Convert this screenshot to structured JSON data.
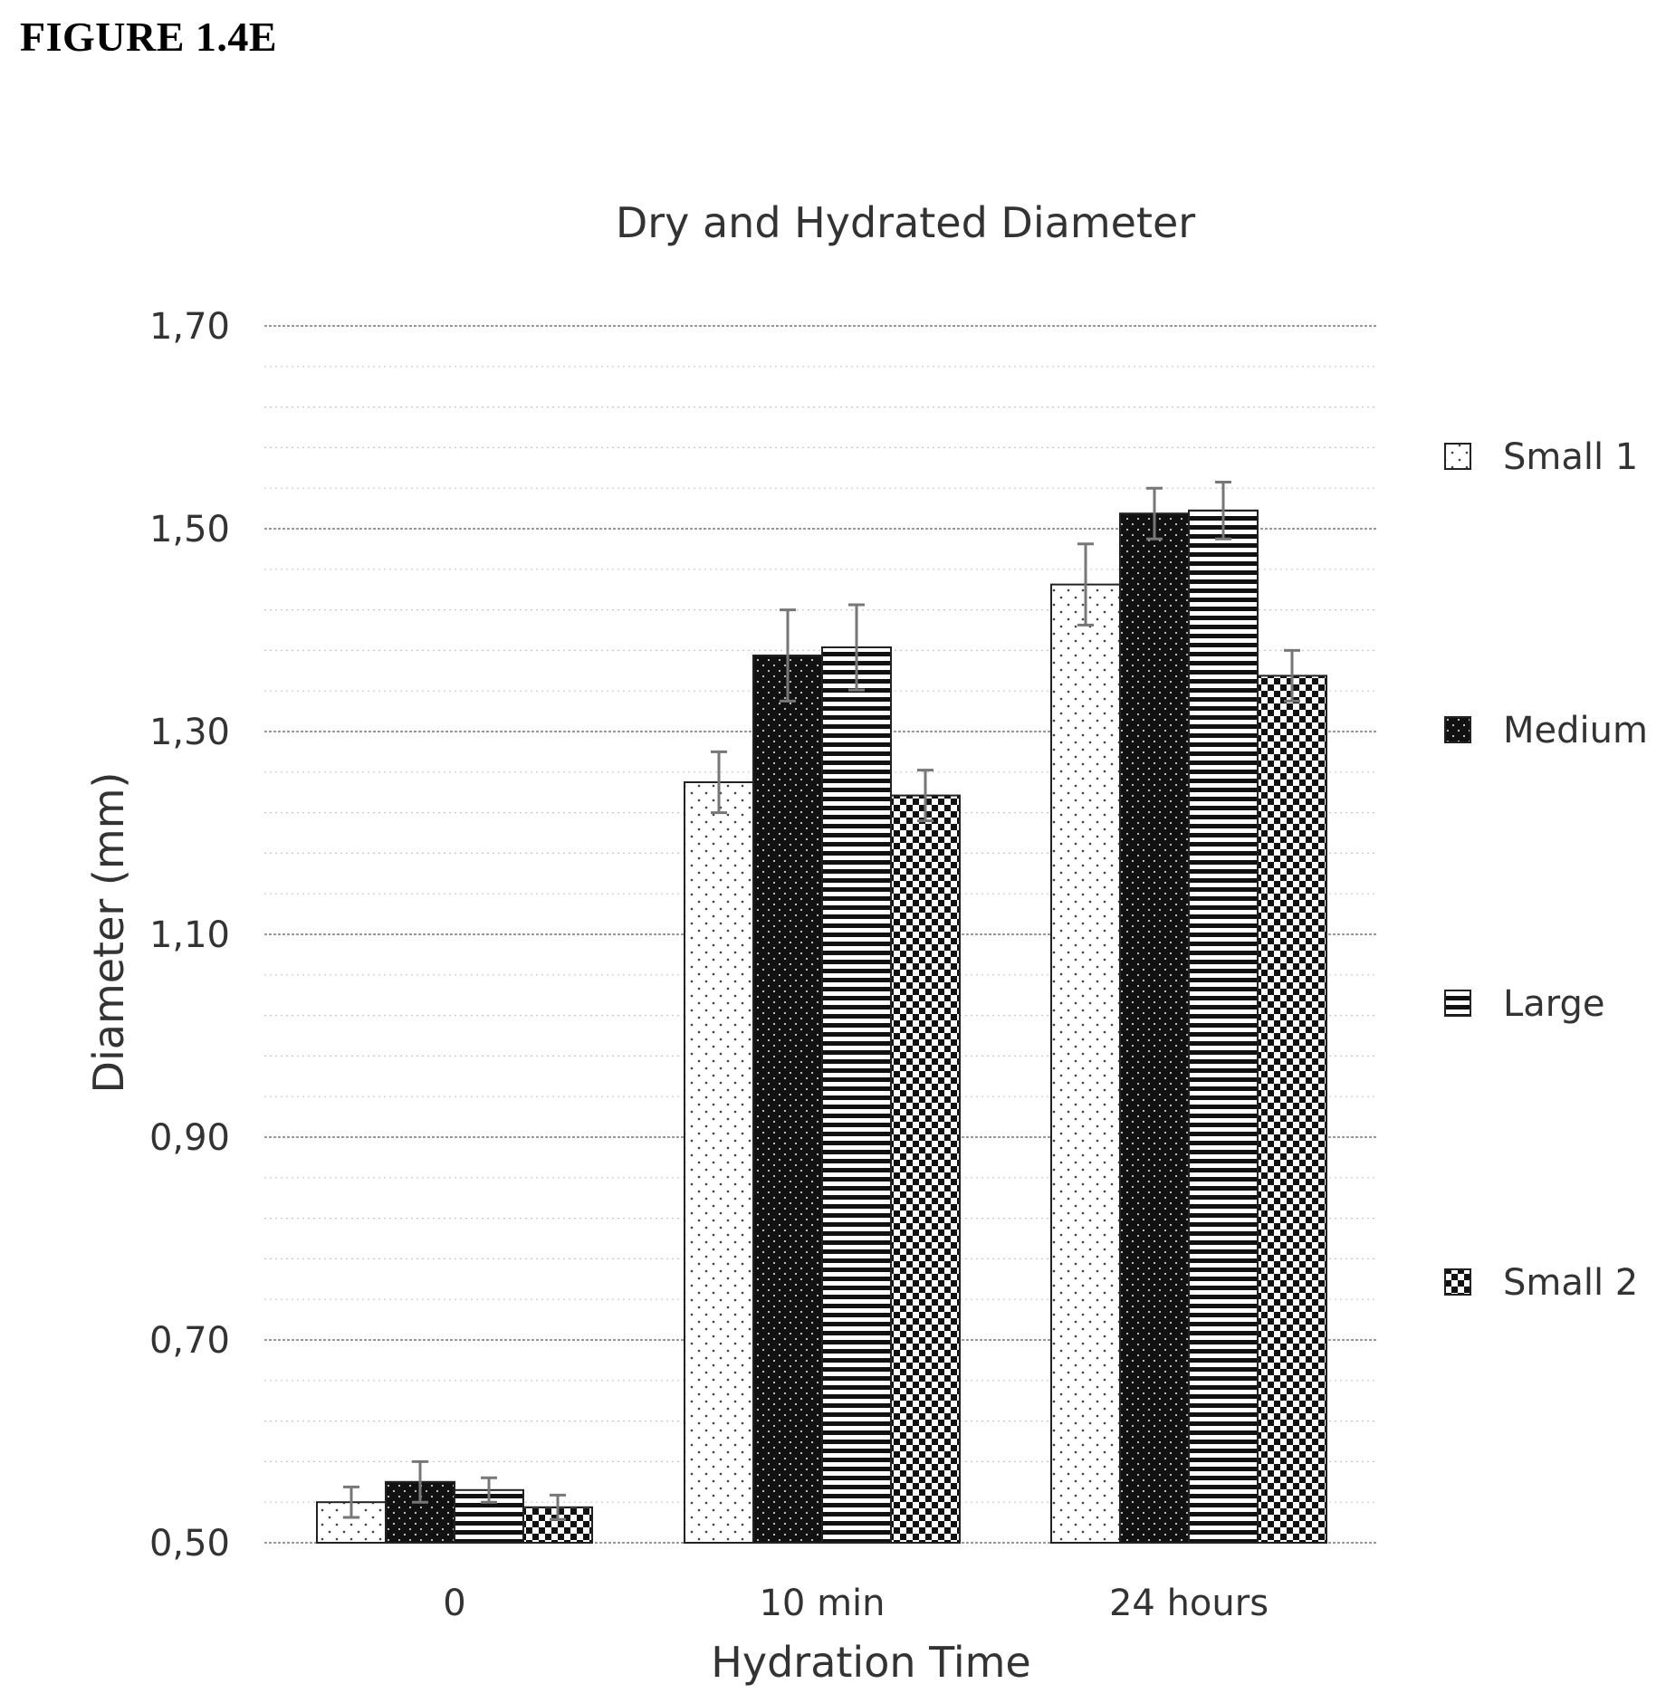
{
  "figure_label": "FIGURE 1.4E",
  "chart_data": {
    "type": "bar",
    "title": "Dry and Hydrated Diameter",
    "xlabel": "Hydration Time",
    "ylabel": "Diameter (mm)",
    "categories": [
      "0",
      "10 min",
      "24 hours"
    ],
    "yticks": [
      "0,50",
      "0,70",
      "0,90",
      "1,10",
      "1,30",
      "1,50",
      "1,70"
    ],
    "ylim": [
      0.5,
      1.7
    ],
    "grid": true,
    "legend_position": "right",
    "series": [
      {
        "name": "Small 1",
        "pattern": "dots-light",
        "values": [
          0.54,
          1.25,
          1.445
        ],
        "errors": [
          0.015,
          0.03,
          0.04
        ]
      },
      {
        "name": "Medium",
        "pattern": "dots-dark",
        "values": [
          0.56,
          1.375,
          1.515
        ],
        "errors": [
          0.02,
          0.045,
          0.025
        ]
      },
      {
        "name": "Large",
        "pattern": "horizontal-stripes",
        "values": [
          0.552,
          1.383,
          1.518
        ],
        "errors": [
          0.012,
          0.042,
          0.028
        ]
      },
      {
        "name": "Small 2",
        "pattern": "checker",
        "values": [
          0.535,
          1.237,
          1.355
        ],
        "errors": [
          0.012,
          0.025,
          0.025
        ]
      }
    ]
  }
}
